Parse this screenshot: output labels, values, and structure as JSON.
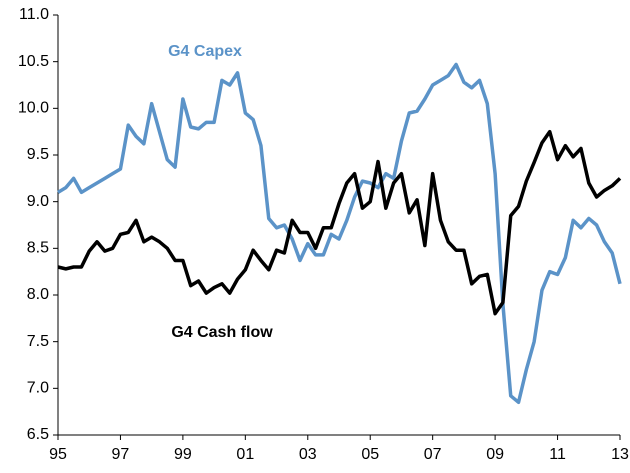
{
  "chart_data": {
    "type": "line",
    "x": [
      1995,
      1995.25,
      1995.5,
      1995.75,
      1996,
      1996.25,
      1996.5,
      1996.75,
      1997,
      1997.25,
      1997.5,
      1997.75,
      1998,
      1998.25,
      1998.5,
      1998.75,
      1999,
      1999.25,
      1999.5,
      1999.75,
      2000,
      2000.25,
      2000.5,
      2000.75,
      2001,
      2001.25,
      2001.5,
      2001.75,
      2002,
      2002.25,
      2002.5,
      2002.75,
      2003,
      2003.25,
      2003.5,
      2003.75,
      2004,
      2004.25,
      2004.5,
      2004.75,
      2005,
      2005.25,
      2005.5,
      2005.75,
      2006,
      2006.25,
      2006.5,
      2006.75,
      2007,
      2007.25,
      2007.5,
      2007.75,
      2008,
      2008.25,
      2008.5,
      2008.75,
      2009,
      2009.25,
      2009.5,
      2009.75,
      2010,
      2010.25,
      2010.5,
      2010.75,
      2011,
      2011.25,
      2011.5,
      2011.75,
      2012,
      2012.25,
      2012.5,
      2012.75,
      2013
    ],
    "series": [
      {
        "name": "G4 Capex",
        "color": "#5b93c8",
        "values": [
          9.1,
          9.15,
          9.25,
          9.1,
          9.15,
          9.2,
          9.25,
          9.3,
          9.35,
          9.82,
          9.7,
          9.62,
          10.05,
          9.75,
          9.45,
          9.37,
          10.1,
          9.8,
          9.78,
          9.85,
          9.85,
          10.3,
          10.25,
          10.38,
          9.95,
          9.88,
          9.6,
          8.82,
          8.72,
          8.75,
          8.6,
          8.37,
          8.55,
          8.43,
          8.43,
          8.65,
          8.6,
          8.8,
          9.05,
          9.22,
          9.2,
          9.15,
          9.3,
          9.25,
          9.65,
          9.95,
          9.97,
          10.1,
          10.25,
          10.3,
          10.35,
          10.47,
          10.28,
          10.22,
          10.3,
          10.05,
          9.3,
          7.9,
          6.92,
          6.85,
          7.2,
          7.5,
          8.05,
          8.25,
          8.22,
          8.4,
          8.8,
          8.72,
          8.82,
          8.75,
          8.57,
          8.45,
          8.12
        ]
      },
      {
        "name": "G4 Cash flow",
        "color": "#000000",
        "values": [
          8.3,
          8.28,
          8.3,
          8.3,
          8.47,
          8.57,
          8.47,
          8.5,
          8.65,
          8.67,
          8.8,
          8.57,
          8.62,
          8.57,
          8.5,
          8.37,
          8.37,
          8.1,
          8.15,
          8.02,
          8.08,
          8.12,
          8.02,
          8.17,
          8.27,
          8.48,
          8.37,
          8.27,
          8.48,
          8.45,
          8.8,
          8.67,
          8.67,
          8.5,
          8.72,
          8.72,
          8.98,
          9.2,
          9.3,
          8.93,
          9.0,
          9.43,
          8.93,
          9.2,
          9.3,
          8.88,
          9.02,
          8.53,
          9.3,
          8.8,
          8.57,
          8.48,
          8.48,
          8.12,
          8.2,
          8.22,
          7.8,
          7.92,
          8.85,
          8.95,
          9.22,
          9.42,
          9.63,
          9.75,
          9.45,
          9.6,
          9.48,
          9.57,
          9.2,
          9.05,
          9.12,
          9.17,
          9.25
        ]
      }
    ],
    "xlim": [
      1995,
      2013
    ],
    "xticks": [
      {
        "value": 1995,
        "label": "95"
      },
      {
        "value": 1997,
        "label": "97"
      },
      {
        "value": 1999,
        "label": "99"
      },
      {
        "value": 2001,
        "label": "01"
      },
      {
        "value": 2003,
        "label": "03"
      },
      {
        "value": 2005,
        "label": "05"
      },
      {
        "value": 2007,
        "label": "07"
      },
      {
        "value": 2009,
        "label": "09"
      },
      {
        "value": 2011,
        "label": "11"
      },
      {
        "value": 2013,
        "label": "13"
      }
    ],
    "ylim": [
      6.5,
      11.0
    ],
    "yticks": [
      {
        "value": 6.5,
        "label": "6.5"
      },
      {
        "value": 7,
        "label": "7.0"
      },
      {
        "value": 7.5,
        "label": "7.5"
      },
      {
        "value": 8,
        "label": "8.0"
      },
      {
        "value": 8.5,
        "label": "8.5"
      },
      {
        "value": 9,
        "label": "9.0"
      },
      {
        "value": 9.5,
        "label": "9.5"
      },
      {
        "value": 10,
        "label": "10.0"
      },
      {
        "value": 10.5,
        "label": "10.5"
      },
      {
        "value": 11,
        "label": "11.0"
      }
    ],
    "grid": false
  }
}
